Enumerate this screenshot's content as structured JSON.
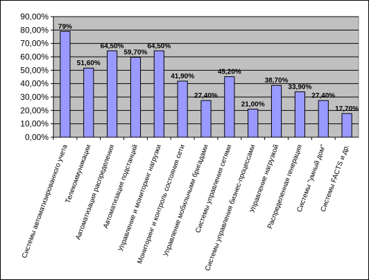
{
  "chart_data": {
    "type": "bar",
    "categories": [
      "Системы автоматизированного учета",
      "Телекоммуникации",
      "Автоматизация распределения",
      "Автоматизация подстанций",
      "Управление и мониторинг нагрузки",
      "Мониторинг и контроль состояния сети",
      "Управление мобильными бригадами",
      "Системы управления сетями",
      "Системы управления бизнес-процессами",
      "Управление нагрузкой",
      "Распределенная генерация",
      "Системы \"умный дом\"",
      "Системы FACTS и др."
    ],
    "values": [
      79,
      51.6,
      64.5,
      59.7,
      64.5,
      41.9,
      27.4,
      45.2,
      21.0,
      38.7,
      33.9,
      27.4,
      17.7
    ],
    "data_labels": [
      "79%",
      "51,60%",
      "64,50%",
      "59,70%",
      "64,50%",
      "41,90%",
      "27,40%",
      "45,20%",
      "21,00%",
      "38,70%",
      "33,90%",
      "27,40%",
      "17,70%"
    ],
    "y_ticks": [
      "0,00%",
      "10,00%",
      "20,00%",
      "30,00%",
      "40,00%",
      "50,00%",
      "60,00%",
      "70,00%",
      "80,00%",
      "90,00%"
    ],
    "ylim": [
      0,
      90
    ],
    "grid": true,
    "legend": "none",
    "colors": {
      "bar_fill": "#9999ff",
      "bar_stroke": "#000000",
      "plot_background": "#c0c0c0",
      "gridline": "#000000"
    }
  }
}
